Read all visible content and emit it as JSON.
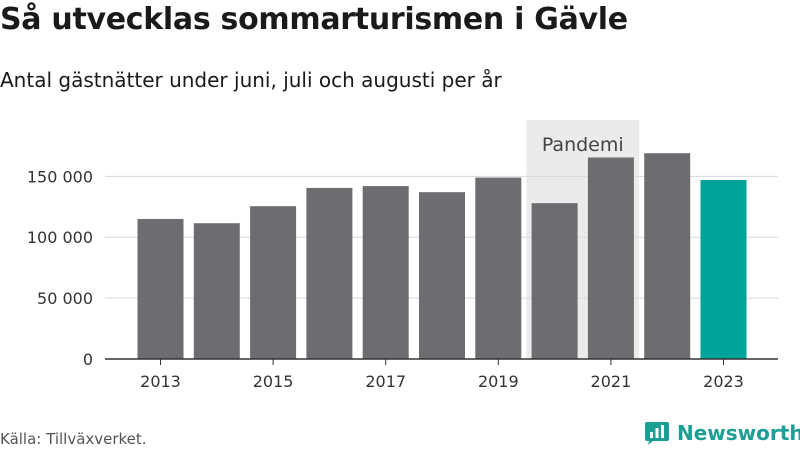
{
  "header": {
    "title": "Så utvecklas sommarturismen i Gävle",
    "subtitle": "Antal gästnätter under juni, juli och augusti per år"
  },
  "footer": {
    "source": "Källa: Tillväxverket.",
    "brand": "Newsworthy"
  },
  "colors": {
    "bar": "#6d6c71",
    "highlight": "#00a398",
    "band": "#ebebeb",
    "brand": "#1d9e95"
  },
  "chart_data": {
    "type": "bar",
    "title": "Så utvecklas sommarturismen i Gävle",
    "subtitle": "Antal gästnätter under juni, juli och augusti per år",
    "categories": [
      "2013",
      "2014",
      "2015",
      "2016",
      "2017",
      "2018",
      "2019",
      "2020",
      "2021",
      "2022",
      "2023"
    ],
    "x_tick_labels": [
      "2013",
      "2015",
      "2017",
      "2019",
      "2021",
      "2023"
    ],
    "values": [
      115000,
      111500,
      125500,
      140500,
      142000,
      137000,
      149000,
      128000,
      165500,
      169000,
      147000
    ],
    "highlight_category": "2023",
    "ylim": [
      0,
      170000
    ],
    "y_ticks": [
      0,
      50000,
      100000,
      150000
    ],
    "y_tick_labels": [
      "0",
      "50 000",
      "100 000",
      "150 000"
    ],
    "grid": true,
    "annotation": {
      "label": "Pandemi",
      "from": "2020",
      "to": "2021"
    }
  }
}
